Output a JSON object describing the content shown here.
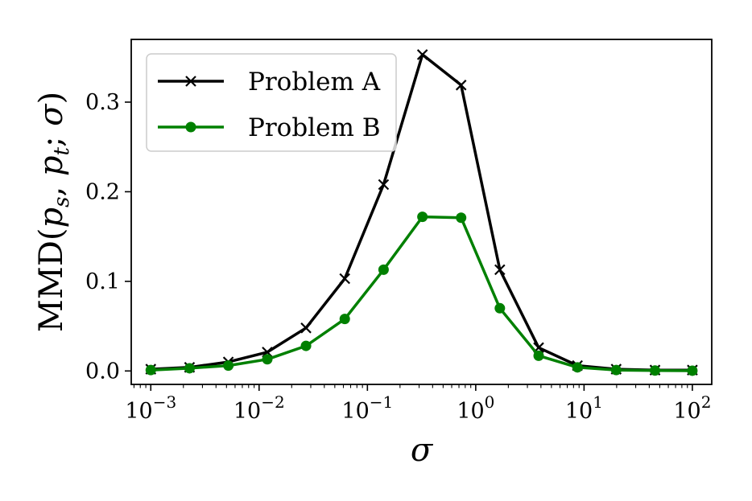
{
  "chart_data": {
    "type": "line",
    "x_scale": "log",
    "x": [
      0.001,
      0.00228,
      0.0052,
      0.0119,
      0.0271,
      0.0618,
      0.141,
      0.322,
      0.733,
      1.67,
      3.81,
      8.69,
      19.8,
      45.2,
      100
    ],
    "series": [
      {
        "name": "Problem A",
        "color": "#000000",
        "marker": "x",
        "values": [
          0.002,
          0.004,
          0.01,
          0.021,
          0.048,
          0.103,
          0.208,
          0.353,
          0.319,
          0.113,
          0.026,
          0.006,
          0.002,
          0.001,
          0.001
        ]
      },
      {
        "name": "Problem B",
        "color": "#008000",
        "marker": "o",
        "values": [
          0.001,
          0.003,
          0.006,
          0.013,
          0.028,
          0.058,
          0.113,
          0.172,
          0.171,
          0.07,
          0.017,
          0.004,
          0.001,
          0.0005,
          0.0003
        ]
      }
    ],
    "title": "",
    "xlabel": "σ",
    "ylabel": "MMD(p_s, p_t; σ)",
    "xlim": [
      0.00066,
      151
    ],
    "ylim": [
      -0.015,
      0.37
    ],
    "x_major_ticks": [
      0.001,
      0.01,
      0.1,
      1,
      10,
      100
    ],
    "x_tick_labels": [
      {
        "base": "10",
        "exp": "−3"
      },
      {
        "base": "10",
        "exp": "−2"
      },
      {
        "base": "10",
        "exp": "−1"
      },
      {
        "base": "10",
        "exp": "0"
      },
      {
        "base": "10",
        "exp": "1"
      },
      {
        "base": "10",
        "exp": "2"
      }
    ],
    "y_ticks": [
      0.0,
      0.1,
      0.2,
      0.3
    ],
    "y_tick_labels": [
      "0.0",
      "0.1",
      "0.2",
      "0.3"
    ],
    "grid": false,
    "legend_position": "top-left"
  }
}
